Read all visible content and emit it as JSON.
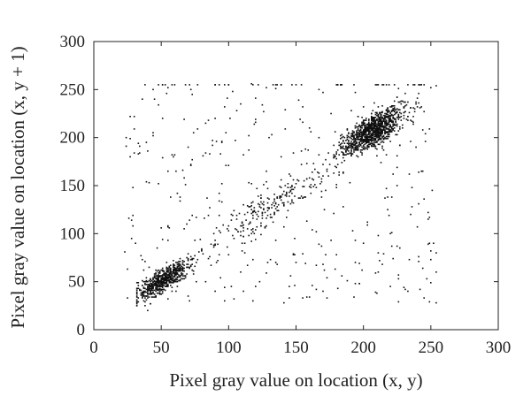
{
  "chart_data": {
    "type": "scatter",
    "title": "",
    "xlabel": "Pixel gray value on location (x, y)",
    "ylabel": "Pixel gray value on location (x, y + 1)",
    "xlim": [
      0,
      300
    ],
    "ylim": [
      0,
      300
    ],
    "xticks": [
      0,
      50,
      100,
      150,
      200,
      250,
      300
    ],
    "yticks": [
      0,
      50,
      100,
      150,
      200,
      250,
      300
    ],
    "grid": false,
    "legend": "none",
    "point_color": "#111111",
    "series": [
      {
        "clusters": [
          {
            "center": [
              52,
              52
            ],
            "spread_along": 13,
            "spread_across": 4.5,
            "x_range": [
              32,
              80
            ],
            "count": 650
          },
          {
            "center": [
              207,
              207
            ],
            "spread_along": 15,
            "spread_across": 6,
            "x_range": [
              178,
              252
            ],
            "count": 1100
          },
          {
            "center": [
              130,
              128
            ],
            "spread_along": 38,
            "spread_across": 8,
            "x_range": [
              70,
              185
            ],
            "count": 230
          }
        ],
        "background_scatter": {
          "x_range": [
            22,
            256
          ],
          "y_range": [
            28,
            256
          ],
          "count": 380
        },
        "points": [
          [
            33,
            33
          ],
          [
            35,
            36
          ],
          [
            38,
            40
          ],
          [
            42,
            41
          ],
          [
            45,
            47
          ],
          [
            50,
            49
          ],
          [
            55,
            57
          ],
          [
            60,
            58
          ],
          [
            65,
            66
          ],
          [
            70,
            68
          ],
          [
            75,
            77
          ],
          [
            80,
            82
          ],
          [
            90,
            88
          ],
          [
            100,
            103
          ],
          [
            110,
            108
          ],
          [
            120,
            122
          ],
          [
            130,
            127
          ],
          [
            140,
            141
          ],
          [
            150,
            152
          ],
          [
            160,
            158
          ],
          [
            170,
            172
          ],
          [
            180,
            183
          ],
          [
            190,
            192
          ],
          [
            200,
            198
          ],
          [
            210,
            211
          ],
          [
            220,
            218
          ],
          [
            230,
            232
          ],
          [
            240,
            241
          ],
          [
            250,
            252
          ],
          [
            254,
            254
          ],
          [
            24,
            200
          ],
          [
            27,
            180
          ],
          [
            45,
            240
          ],
          [
            60,
            255
          ],
          [
            90,
            255
          ],
          [
            100,
            255
          ],
          [
            40,
            20
          ],
          [
            118,
            255
          ],
          [
            136,
            255
          ],
          [
            150,
            255
          ],
          [
            238,
            255
          ],
          [
            245,
            255
          ],
          [
            254,
            80
          ],
          [
            252,
            90
          ],
          [
            254,
            60
          ],
          [
            210,
            38
          ],
          [
            220,
            45
          ],
          [
            230,
            44
          ],
          [
            248,
            115
          ],
          [
            235,
            120
          ],
          [
            170,
            40
          ],
          [
            180,
            78
          ],
          [
            120,
            45
          ],
          [
            112,
            80
          ],
          [
            150,
            70
          ],
          [
            200,
            90
          ],
          [
            220,
            100
          ],
          [
            160,
            210
          ],
          [
            130,
            200
          ],
          [
            90,
            220
          ]
        ]
      }
    ]
  }
}
